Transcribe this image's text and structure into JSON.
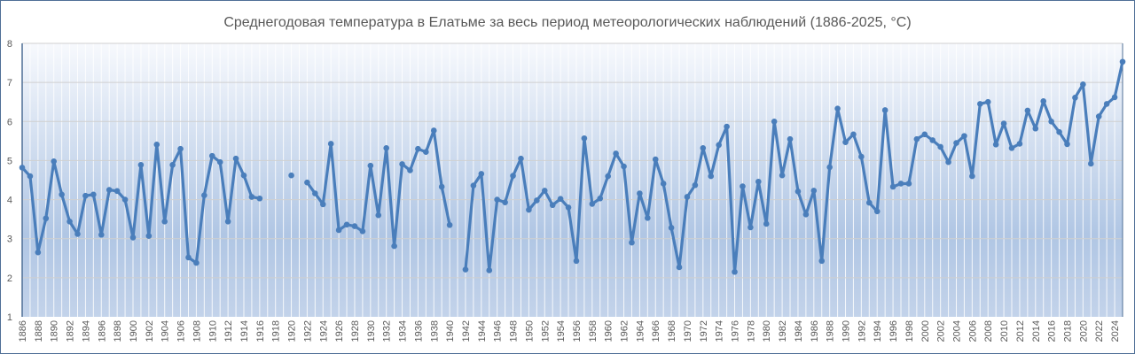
{
  "chart_data": {
    "type": "line",
    "title": "Среднегодовая температура в Елатьме за весь период метеорологических наблюдений (1886-2025, °C)",
    "xlabel": "",
    "ylabel": "",
    "ylim": [
      1,
      8
    ],
    "yticks": [
      "1",
      "2",
      "3",
      "4",
      "5",
      "6",
      "7",
      "8"
    ],
    "x_start": 1886,
    "x_end": 2025,
    "xtick_step": 2,
    "grid": true,
    "legend": "none",
    "series_color": "#4a7ebb",
    "series": [
      {
        "name": "Среднегодовая температура",
        "values": [
          4.82,
          4.6,
          2.65,
          3.52,
          4.98,
          4.13,
          3.44,
          3.12,
          4.1,
          4.13,
          3.1,
          4.25,
          4.22,
          4.0,
          3.03,
          4.89,
          3.07,
          5.41,
          3.44,
          4.89,
          5.3,
          2.52,
          2.38,
          4.11,
          5.12,
          4.96,
          3.44,
          5.05,
          4.62,
          4.07,
          4.03,
          null,
          null,
          null,
          4.62,
          null,
          4.44,
          4.16,
          3.88,
          5.43,
          3.22,
          3.36,
          3.32,
          3.19,
          4.87,
          3.6,
          5.32,
          2.81,
          4.91,
          4.75,
          5.3,
          5.22,
          5.77,
          4.33,
          3.35,
          null,
          2.21,
          4.36,
          4.66,
          2.19,
          4.0,
          3.93,
          4.61,
          5.05,
          3.74,
          3.98,
          4.23,
          3.86,
          4.02,
          3.8,
          2.43,
          5.57,
          3.89,
          4.03,
          4.6,
          5.18,
          4.85,
          2.9,
          4.16,
          3.53,
          5.03,
          4.41,
          3.28,
          2.27,
          4.07,
          4.37,
          5.32,
          4.6,
          5.4,
          5.87,
          2.15,
          4.34,
          3.29,
          4.46,
          3.38,
          6.0,
          4.62,
          5.55,
          4.21,
          3.62,
          4.23,
          2.43,
          4.83,
          6.33,
          5.47,
          5.67,
          5.1,
          3.92,
          3.7,
          6.29,
          4.33,
          4.41,
          4.41,
          5.55,
          5.67,
          5.52,
          5.35,
          4.96,
          5.45,
          5.63,
          4.6,
          6.45,
          6.5,
          5.41,
          5.95,
          5.32,
          5.43,
          6.28,
          5.82,
          6.52,
          6.0,
          5.73,
          5.42,
          6.61,
          6.95,
          4.92,
          6.13,
          6.45,
          6.62,
          7.53
        ]
      }
    ]
  }
}
